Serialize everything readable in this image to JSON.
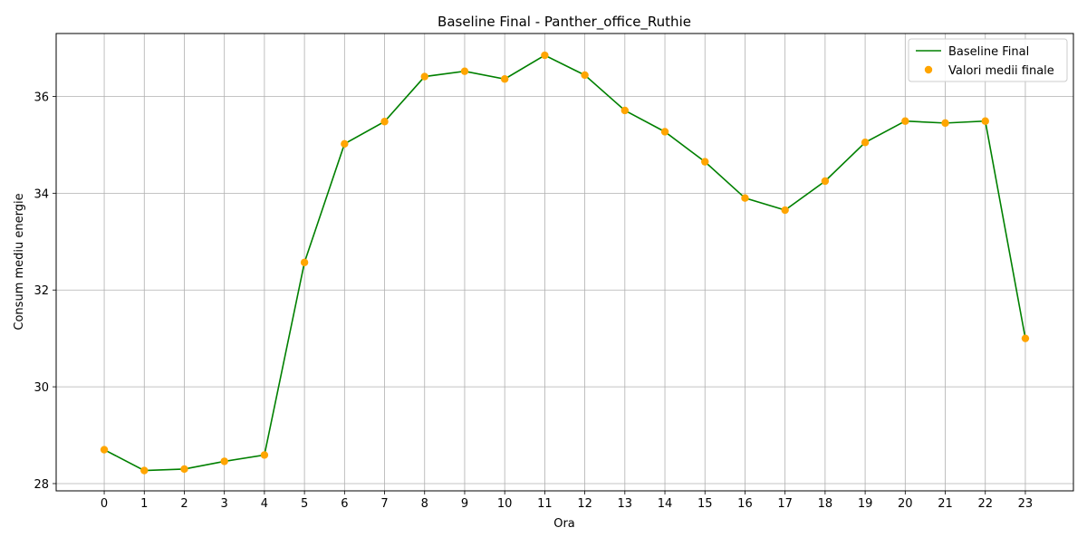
{
  "chart_data": {
    "type": "line",
    "title": "Baseline Final - Panther_office_Ruthie",
    "xlabel": "Ora",
    "ylabel": "Consum mediu energie",
    "x": [
      0,
      1,
      2,
      3,
      4,
      5,
      6,
      7,
      8,
      9,
      10,
      11,
      12,
      13,
      14,
      15,
      16,
      17,
      18,
      19,
      20,
      21,
      22,
      23
    ],
    "xlim": [
      -1.2,
      24.2
    ],
    "ylim": [
      27.85,
      37.3
    ],
    "yticks": [
      28,
      30,
      32,
      34,
      36
    ],
    "grid": true,
    "legend_position": "top-right",
    "series": [
      {
        "name": "Baseline Final",
        "kind": "line",
        "color": "#008000",
        "values": [
          28.7,
          28.27,
          28.3,
          28.46,
          28.59,
          32.57,
          35.02,
          35.48,
          36.41,
          36.52,
          36.36,
          36.85,
          36.44,
          35.71,
          35.27,
          34.65,
          33.9,
          33.65,
          34.25,
          35.05,
          35.49,
          35.45,
          35.49,
          31.0
        ]
      },
      {
        "name": "Valori medii finale",
        "kind": "scatter",
        "color": "#ffa500",
        "values": [
          28.7,
          28.27,
          28.3,
          28.46,
          28.59,
          32.57,
          35.02,
          35.48,
          36.41,
          36.52,
          36.36,
          36.85,
          36.44,
          35.71,
          35.27,
          34.65,
          33.9,
          33.65,
          34.25,
          35.05,
          35.49,
          35.45,
          35.49,
          31.0
        ]
      }
    ]
  }
}
